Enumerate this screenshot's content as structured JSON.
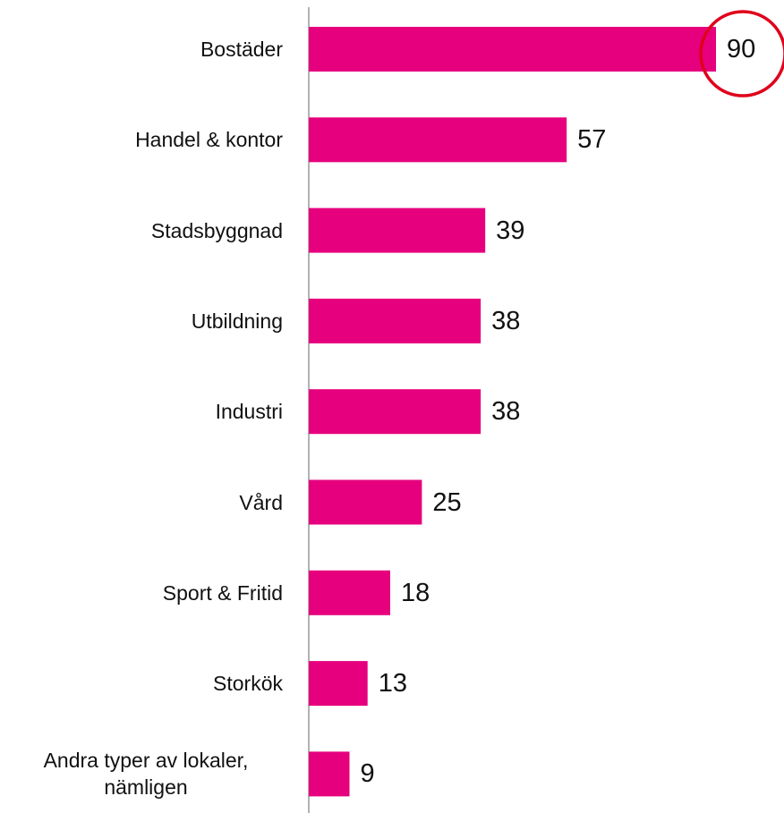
{
  "chart_data": {
    "type": "bar",
    "orientation": "horizontal",
    "categories": [
      "Bostäder",
      "Handel & kontor",
      "Stadsbyggnad",
      "Utbildning",
      "Industri",
      "Vård",
      "Sport & Fritid",
      "Storkök",
      "Andra typer av lokaler, nämligen"
    ],
    "values": [
      90,
      57,
      39,
      38,
      38,
      25,
      18,
      13,
      9
    ],
    "color": "#e6007e"
  }
}
